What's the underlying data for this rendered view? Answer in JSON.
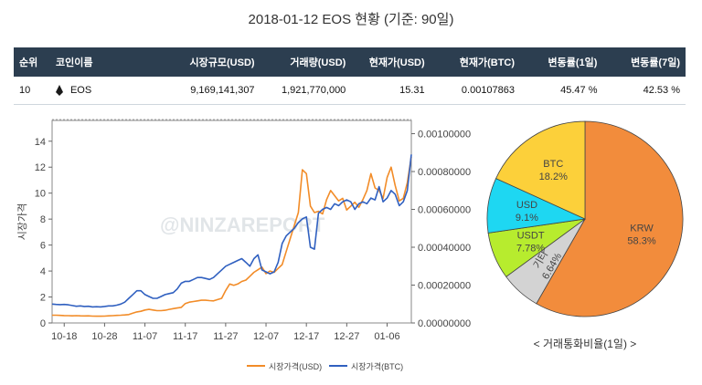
{
  "page_title": "2018-01-12 EOS 현황 (기준: 90일)",
  "table": {
    "headers": [
      "순위",
      "코인이름",
      "시장규모(USD)",
      "거래량(USD)",
      "현재가(USD)",
      "현재가(BTC)",
      "변동률(1일)",
      "변동률(7일)"
    ],
    "row": {
      "rank": "10",
      "coin_icon": "eos-coin-icon",
      "coin_name": "EOS",
      "market_cap": "9,169,141,307",
      "volume": "1,921,770,000",
      "price_usd": "15.31",
      "price_btc": "0.00107863",
      "change_1d": "45.47 %",
      "change_7d": "42.53 %"
    }
  },
  "watermark": "@NINZAREPORT",
  "pie_caption": "< 거래통화비율(1일) >",
  "colors": {
    "usd_line": "#f28c28",
    "btc_line": "#3060c0",
    "header_bg": "#2c3e50",
    "positive": "#2e8b2e"
  },
  "chart_data": [
    {
      "type": "line",
      "title": "",
      "ylabel": "시장가격",
      "ylim": [
        0,
        15.6
      ],
      "y2lim": [
        0,
        0.00107
      ],
      "yticks": [
        "0",
        "2",
        "4",
        "6",
        "8",
        "10",
        "12",
        "14"
      ],
      "y2ticks": [
        "0.00000000",
        "0.00020000",
        "0.00040000",
        "0.00060000",
        "0.00080000",
        "0.00100000"
      ],
      "xticks": [
        "10-18",
        "10-28",
        "11-07",
        "11-17",
        "11-27",
        "12-07",
        "12-17",
        "12-27",
        "01-06"
      ],
      "xtick_index": [
        3,
        13,
        23,
        33,
        43,
        53,
        63,
        73,
        83
      ],
      "grid": false,
      "legend": "bottom",
      "series": [
        {
          "name": "시장가격(USD)",
          "axis": "left",
          "color": "#f28c28",
          "values": [
            0.6,
            0.6,
            0.58,
            0.57,
            0.56,
            0.55,
            0.56,
            0.55,
            0.54,
            0.55,
            0.53,
            0.52,
            0.52,
            0.53,
            0.55,
            0.56,
            0.58,
            0.6,
            0.62,
            0.65,
            0.75,
            0.85,
            0.9,
            1.0,
            1.05,
            1.0,
            0.95,
            0.95,
            0.98,
            1.05,
            1.1,
            1.15,
            1.2,
            1.5,
            1.6,
            1.65,
            1.7,
            1.75,
            1.75,
            1.72,
            1.7,
            1.8,
            1.9,
            2.5,
            3.0,
            2.9,
            3.0,
            3.2,
            3.3,
            3.6,
            3.9,
            4.1,
            4.3,
            3.8,
            4.0,
            3.9,
            4.2,
            4.5,
            5.5,
            6.5,
            7.5,
            8.5,
            11.8,
            11.5,
            9.0,
            8.5,
            8.6,
            8.4,
            9.5,
            10.2,
            9.8,
            9.4,
            9.6,
            8.7,
            9.0,
            9.3,
            8.9,
            9.5,
            10.2,
            11.5,
            10.4,
            10.2,
            9.6,
            11.2,
            12.0,
            10.6,
            9.4,
            9.6,
            10.8,
            12.8
          ]
        },
        {
          "name": "시장가격(BTC)",
          "axis": "right",
          "color": "#3060c0",
          "values": [
            0.0001,
            9.8e-05,
            9.7e-05,
            9.8e-05,
            9.6e-05,
            9.2e-05,
            8.8e-05,
            9e-05,
            8.7e-05,
            8.8e-05,
            8.5e-05,
            8.6e-05,
            8.5e-05,
            8.7e-05,
            9e-05,
            9e-05,
            9.4e-05,
            0.0001,
            0.00011,
            0.00013,
            0.00015,
            0.00017,
            0.00017,
            0.00015,
            0.00014,
            0.00013,
            0.00013,
            0.00014,
            0.00015,
            0.000155,
            0.00016,
            0.00018,
            0.00021,
            0.00022,
            0.00022,
            0.00023,
            0.00024,
            0.00024,
            0.000235,
            0.00023,
            0.00024,
            0.00026,
            0.00028,
            0.0003,
            0.00031,
            0.00032,
            0.00033,
            0.00034,
            0.00032,
            0.0003,
            0.00034,
            0.00036,
            0.00028,
            0.00027,
            0.00026,
            0.00027,
            0.00032,
            0.00042,
            0.00046,
            0.00048,
            0.0005,
            0.00053,
            0.00055,
            0.00056,
            0.0004,
            0.00039,
            0.00058,
            0.0006,
            0.00061,
            0.0006,
            0.00063,
            0.00062,
            0.00064,
            0.00065,
            0.00064,
            0.0006,
            0.00063,
            0.00064,
            0.00063,
            0.00066,
            0.00065,
            0.00072,
            0.00064,
            0.00066,
            0.0007,
            0.00068,
            0.00062,
            0.00064,
            0.0007,
            0.00089
          ]
        }
      ]
    },
    {
      "type": "pie",
      "title": "< 거래통화비율(1일) >",
      "slices": [
        {
          "label": "KRW",
          "value": 58.3,
          "text": "58.3%",
          "color": "#f28c3c"
        },
        {
          "label": "기타",
          "value": 6.64,
          "text": "6.64%",
          "color": "#d3d3d3"
        },
        {
          "label": "USDT",
          "value": 7.78,
          "text": "7.78%",
          "color": "#b7ec2e"
        },
        {
          "label": "USD",
          "value": 9.1,
          "text": "9.1%",
          "color": "#1ed7f2"
        },
        {
          "label": "BTC",
          "value": 18.2,
          "text": "18.2%",
          "color": "#fcd03a"
        }
      ]
    }
  ]
}
